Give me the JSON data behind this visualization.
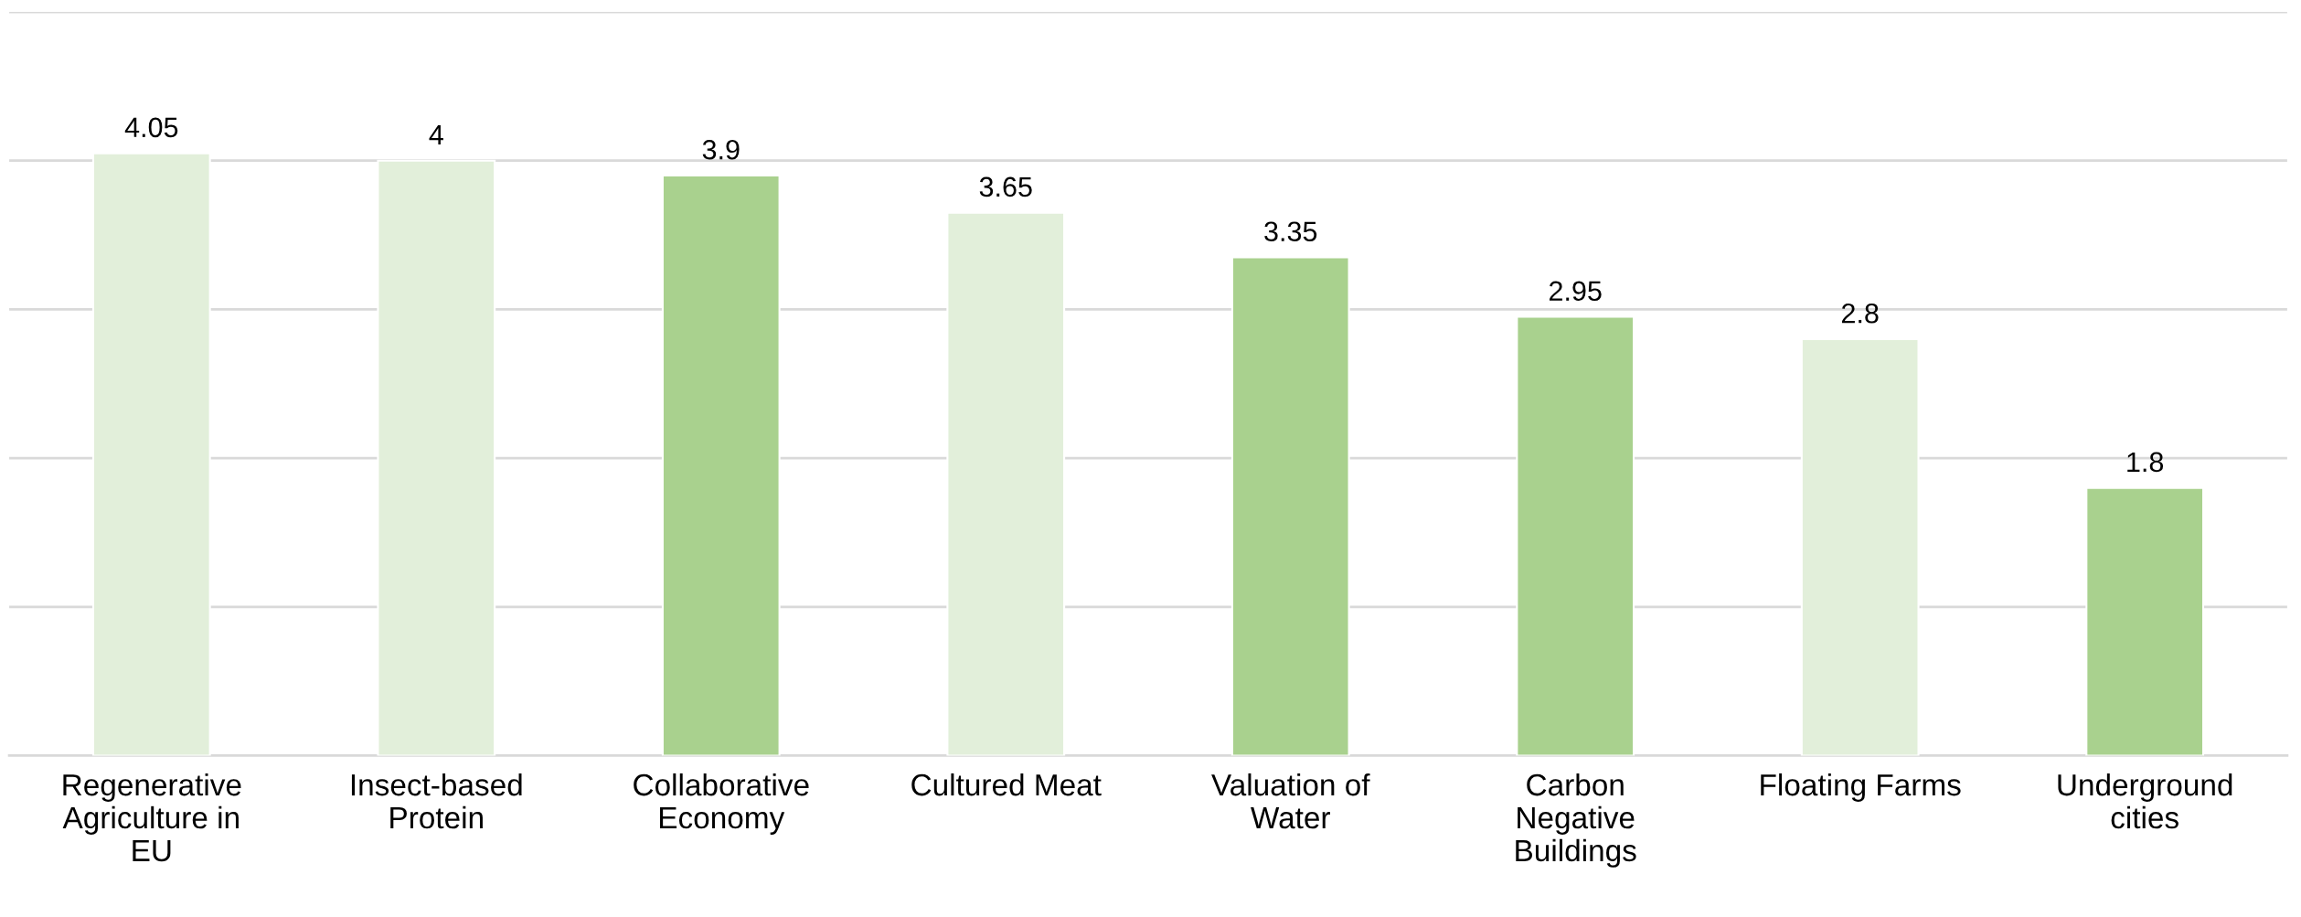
{
  "chart_data": {
    "type": "bar",
    "categories": [
      "Regenerative\nAgriculture in\nEU",
      "Insect-based\nProtein",
      "Collaborative\nEconomy",
      "Cultured Meat",
      "Valuation of\nWater",
      "Carbon\nNegative\nBuildings",
      "Floating Farms",
      "Underground\ncities"
    ],
    "values": [
      4.05,
      4,
      3.9,
      3.65,
      3.35,
      2.95,
      2.8,
      1.8
    ],
    "colors": [
      "#e2efda",
      "#e2efda",
      "#a9d18e",
      "#e2efda",
      "#a9d18e",
      "#a9d18e",
      "#e2efda",
      "#a9d18e"
    ],
    "ylim": [
      0,
      5
    ],
    "yticks": [
      {
        "value": 0,
        "label": null
      },
      {
        "value": 1,
        "label": null
      },
      {
        "value": 2,
        "label": null
      },
      {
        "value": 3,
        "label": null
      },
      {
        "value": 4,
        "label": null
      },
      {
        "value": 5,
        "label": null
      }
    ],
    "grid": "y",
    "tick_labels": "x",
    "data_labels": true
  }
}
